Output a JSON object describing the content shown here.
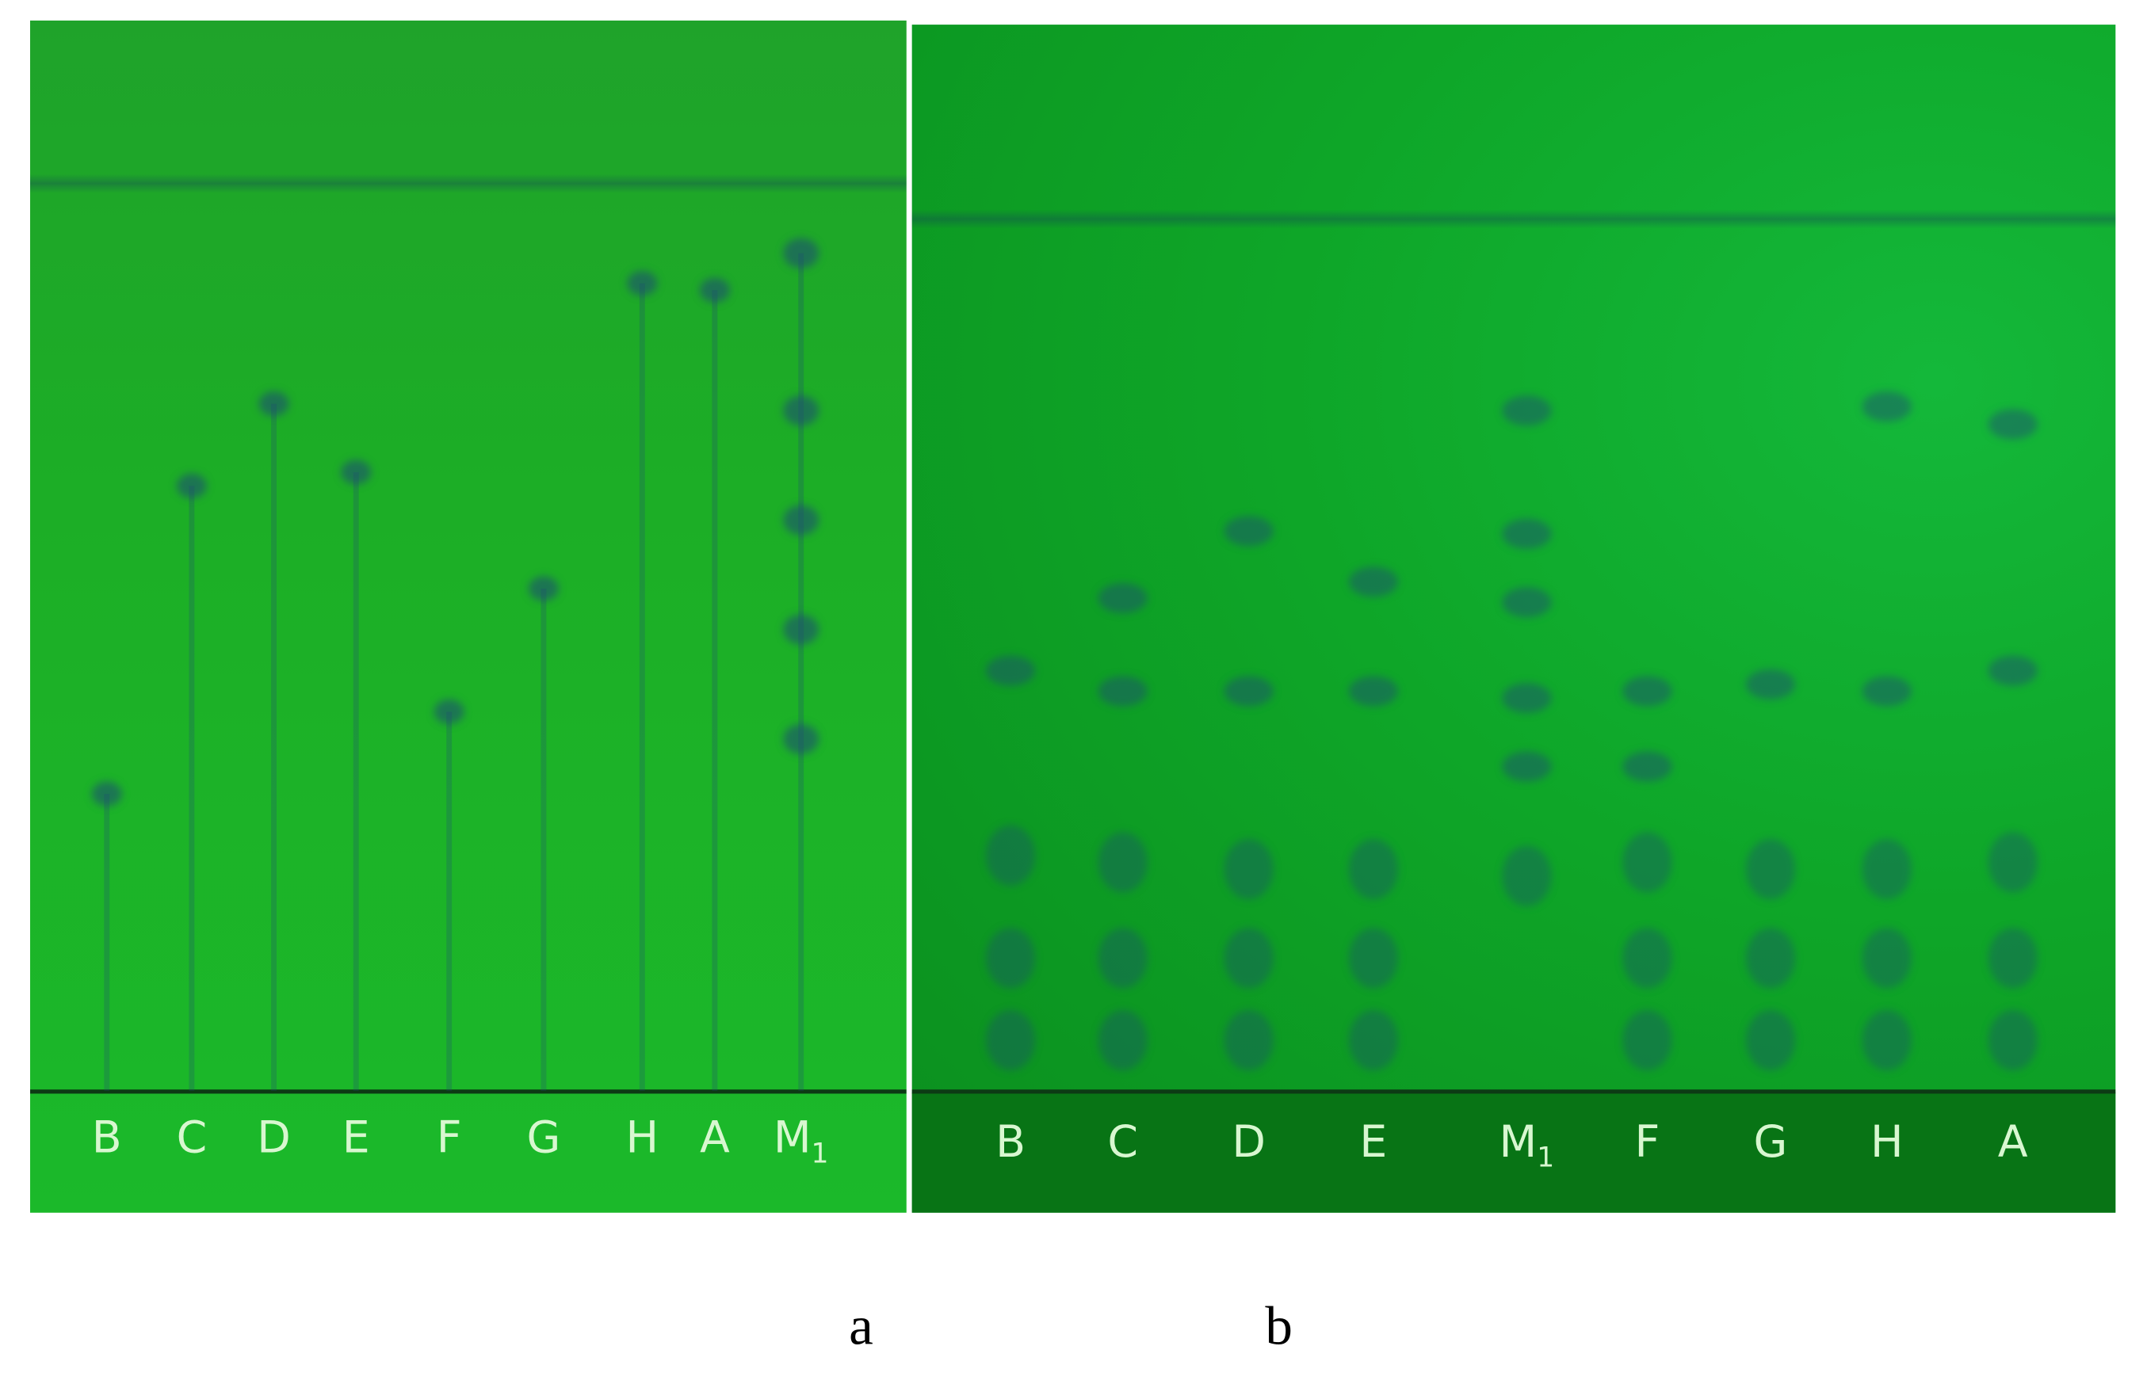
{
  "panels": [
    {
      "label": "a",
      "lanes": [
        "B",
        "C",
        "D",
        "E",
        "F",
        "G",
        "H",
        "A",
        "M1"
      ]
    },
    {
      "label": "b",
      "lanes": [
        "B",
        "C",
        "D",
        "E",
        "M1",
        "F",
        "G",
        "H",
        "A"
      ]
    }
  ],
  "colors": {
    "plate_a": "#1cae26",
    "plate_b": "#0ea628",
    "spot": "#1f5a8a"
  }
}
